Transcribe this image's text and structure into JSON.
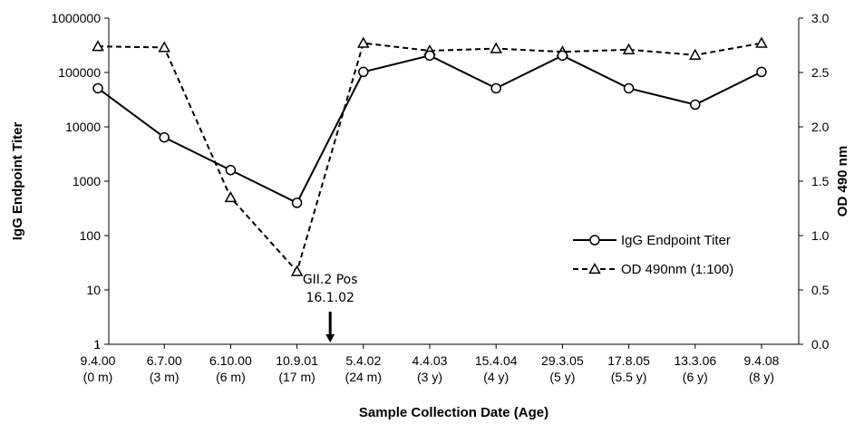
{
  "chart_data": {
    "type": "line",
    "categories": [
      {
        "date": "9.4.00",
        "age": "(0 m)"
      },
      {
        "date": "6.7.00",
        "age": "(3 m)"
      },
      {
        "date": "6.10.00",
        "age": "(6 m)"
      },
      {
        "date": "10.9.01",
        "age": "(17 m)"
      },
      {
        "date": "5.4.02",
        "age": "(24 m)"
      },
      {
        "date": "4.4.03",
        "age": "(3 y)"
      },
      {
        "date": "15.4.04",
        "age": "(4 y)"
      },
      {
        "date": "29.3.05",
        "age": "(5 y)"
      },
      {
        "date": "17.8.05",
        "age": "(5.5 y)"
      },
      {
        "date": "13.3.06",
        "age": "(6 y)"
      },
      {
        "date": "9.4.08",
        "age": "(8 y)"
      }
    ],
    "series": [
      {
        "name": "IgG Endpoint Titer",
        "axis": "left",
        "style": "solid",
        "marker": "circle",
        "values": [
          51200,
          6400,
          1600,
          400,
          102400,
          204800,
          51200,
          204800,
          51200,
          25600,
          102400
        ]
      },
      {
        "name": "OD 490nm (1:100)",
        "axis": "right",
        "style": "dashed",
        "marker": "triangle",
        "values": [
          2.74,
          2.73,
          1.35,
          0.67,
          2.77,
          2.7,
          2.72,
          2.69,
          2.71,
          2.66,
          2.77
        ]
      }
    ],
    "xlabel": "Sample Collection Date (Age)",
    "ylabel_left": "IgG Endpoint Titer",
    "ylabel_right": "OD 490 nm",
    "y_left_scale": "log",
    "y_left_range": [
      1,
      1000000
    ],
    "y_left_ticks": [
      "1",
      "10",
      "100",
      "1000",
      "10000",
      "100000",
      "1000000"
    ],
    "y_right_range": [
      0,
      3
    ],
    "y_right_ticks": [
      "0.0",
      "0.5",
      "1.0",
      "1.5",
      "2.0",
      "2.5",
      "3.0"
    ],
    "grid": false,
    "legend_position": "right",
    "annotation": {
      "line1": "GII.2 Pos",
      "line2": "16.1.02",
      "between_categories": [
        "10.9.01",
        "5.4.02"
      ]
    },
    "colors": {
      "line": "#000000",
      "background": "#ffffff"
    }
  }
}
